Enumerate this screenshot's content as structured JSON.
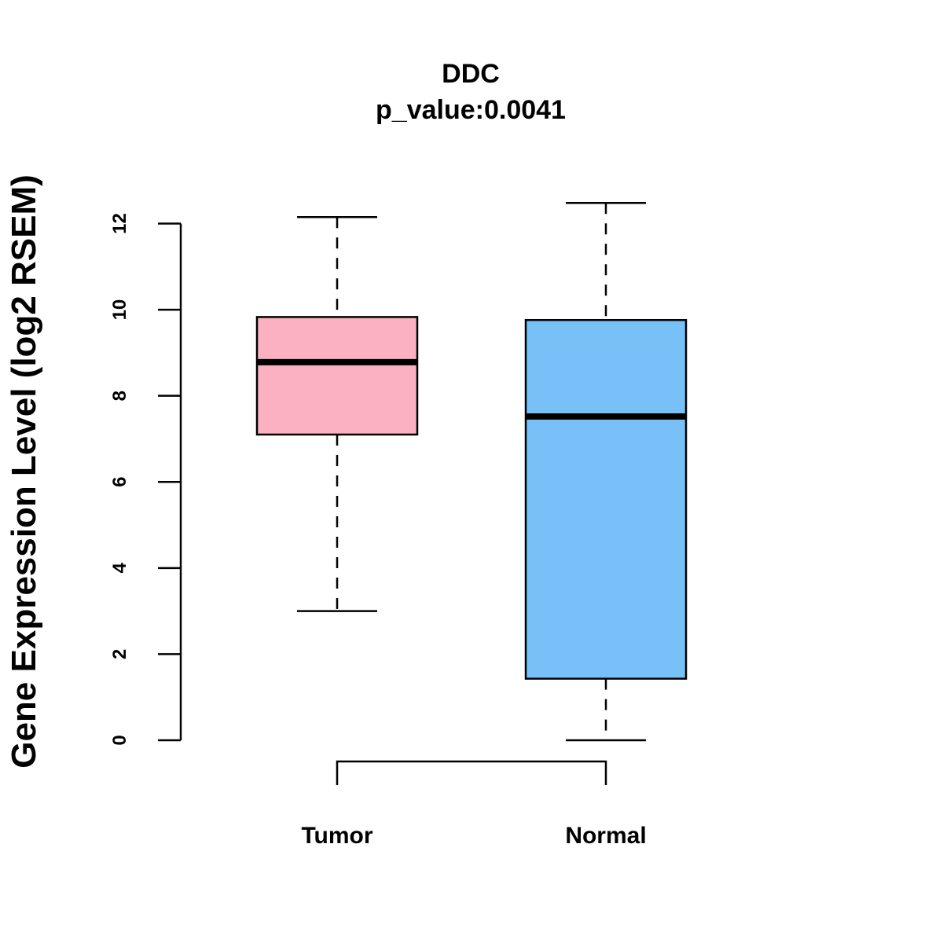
{
  "chart_data": {
    "type": "boxplot",
    "title": "DDC",
    "subtitle": "p_value:0.0041",
    "xlabel": "",
    "ylabel": "Gene Expression Level (log2 RSEM)",
    "ylim": [
      0,
      12
    ],
    "yticks": [
      0,
      2,
      4,
      6,
      8,
      10,
      12
    ],
    "grid": false,
    "categories": [
      "Tumor",
      "Normal"
    ],
    "series": [
      {
        "name": "Tumor",
        "color": "#FBB1C2",
        "whisker_low": 3.0,
        "q1": 7.1,
        "median": 8.78,
        "q3": 9.83,
        "whisker_high": 12.15
      },
      {
        "name": "Normal",
        "color": "#77C0F8",
        "whisker_low": 0.0,
        "q1": 1.43,
        "median": 7.52,
        "q3": 9.76,
        "whisker_high": 12.48
      }
    ],
    "comparison_bracket": [
      "Tumor",
      "Normal"
    ]
  }
}
